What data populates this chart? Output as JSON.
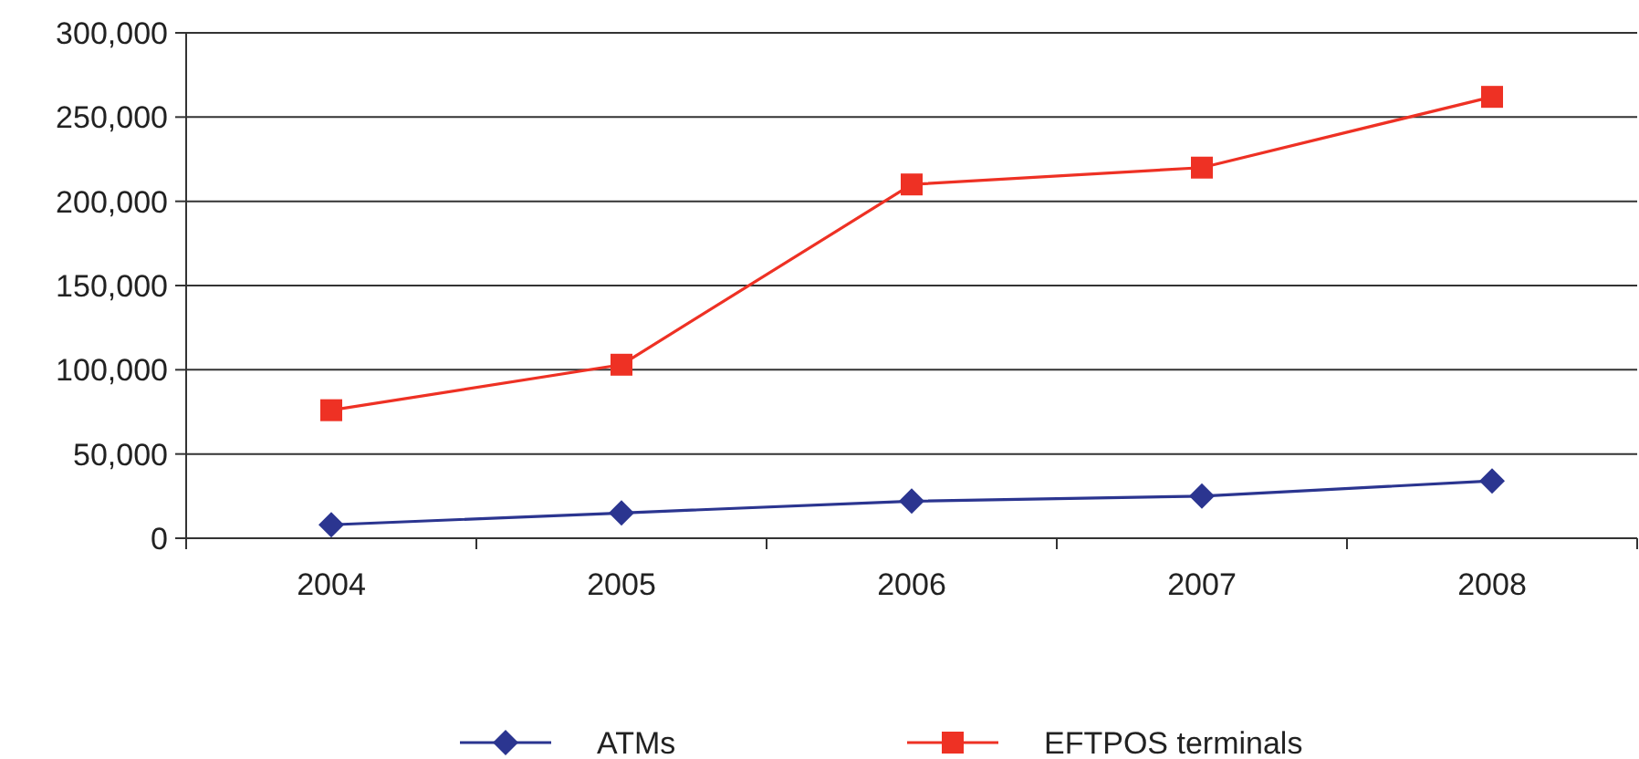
{
  "chart_data": {
    "type": "line",
    "categories": [
      "2004",
      "2005",
      "2006",
      "2007",
      "2008"
    ],
    "series": [
      {
        "name": "ATMs",
        "color": "#2b3590",
        "values": [
          8000,
          15000,
          22000,
          25000,
          34000
        ],
        "marker": "diamond"
      },
      {
        "name": "EFTPOS terminals",
        "color": "#ee3124",
        "values": [
          76000,
          103000,
          210000,
          220000,
          262000
        ],
        "marker": "square"
      }
    ],
    "ylim": [
      0,
      300000
    ],
    "yticks": [
      {
        "value": 0,
        "label": "0"
      },
      {
        "value": 50000,
        "label": "50,000"
      },
      {
        "value": 100000,
        "label": "100,000"
      },
      {
        "value": 150000,
        "label": "150,000"
      },
      {
        "value": 200000,
        "label": "200,000"
      },
      {
        "value": 250000,
        "label": "250,000"
      },
      {
        "value": 300000,
        "label": "300,000"
      }
    ],
    "grid": "y",
    "legend": "bottom",
    "line_style": "solid"
  }
}
